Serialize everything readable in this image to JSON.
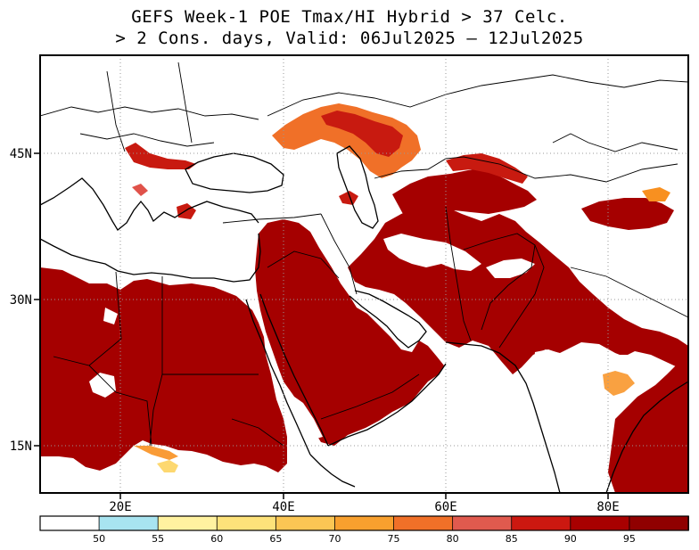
{
  "title": {
    "line1": "GEFS Week-1 POE Tmax/HI Hybrid > 37 Celc.",
    "line2": "> 2 Cons. days, Valid: 06Jul2025 – 12Jul2025"
  },
  "map": {
    "lon_labels": [
      "20E",
      "40E",
      "60E",
      "80E"
    ],
    "lat_labels": [
      "45N",
      "30N",
      "15N"
    ],
    "colors": {
      "prob_95": "#a50000",
      "prob_90": "#c81a10",
      "prob_85": "#e0524a",
      "prob_80": "#f07028",
      "prob_75": "#f89020",
      "prob_70": "#fbb640",
      "prob_65": "#fdd870",
      "prob_60": "#fff2a0",
      "prob_55": "#a8e4f0",
      "ocean": "#ffffff",
      "border": "#000000"
    }
  },
  "colorbar": {
    "labels": [
      "50",
      "55",
      "60",
      "65",
      "70",
      "75",
      "80",
      "85",
      "90",
      "95"
    ],
    "colors": [
      "#ffffff",
      "#a8e4f0",
      "#fff2a0",
      "#fde27a",
      "#fbc654",
      "#f8a02e",
      "#f07028",
      "#e05a4e",
      "#cc1810",
      "#a80000",
      "#900000"
    ]
  }
}
